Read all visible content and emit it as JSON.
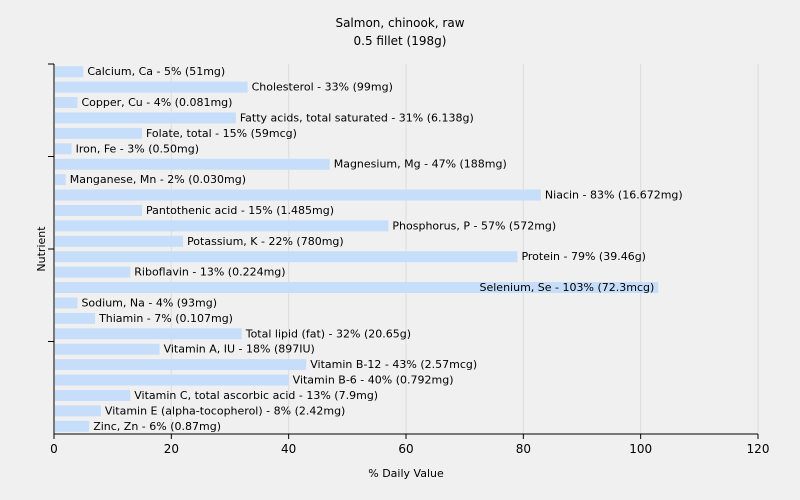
{
  "chart_data": {
    "type": "bar",
    "orientation": "horizontal",
    "title": "Salmon, chinook, raw",
    "subtitle": "0.5 fillet (198g)",
    "xlabel": "% Daily Value",
    "ylabel": "Nutrient",
    "xlim": [
      0,
      120
    ],
    "xticks": [
      0,
      20,
      40,
      60,
      80,
      100,
      120
    ],
    "grid": true,
    "legend": "none",
    "bar_color": "#c6def9",
    "categories": [
      "Calcium, Ca",
      "Cholesterol",
      "Copper, Cu",
      "Fatty acids, total saturated",
      "Folate, total",
      "Iron, Fe",
      "Magnesium, Mg",
      "Manganese, Mn",
      "Niacin",
      "Pantothenic acid",
      "Phosphorus, P",
      "Potassium, K",
      "Protein",
      "Riboflavin",
      "Selenium, Se",
      "Sodium, Na",
      "Thiamin",
      "Total lipid (fat)",
      "Vitamin A, IU",
      "Vitamin B-12",
      "Vitamin B-6",
      "Vitamin C, total ascorbic acid",
      "Vitamin E (alpha-tocopherol)",
      "Zinc, Zn"
    ],
    "values": [
      5,
      33,
      4,
      31,
      15,
      3,
      47,
      2,
      83,
      15,
      57,
      22,
      79,
      13,
      103,
      4,
      7,
      32,
      18,
      43,
      40,
      13,
      8,
      6
    ],
    "labels": [
      "Calcium, Ca - 5% (51mg)",
      "Cholesterol - 33% (99mg)",
      "Copper, Cu - 4% (0.081mg)",
      "Fatty acids, total saturated - 31% (6.138g)",
      "Folate, total - 15% (59mcg)",
      "Iron, Fe - 3% (0.50mg)",
      "Magnesium, Mg - 47% (188mg)",
      "Manganese, Mn - 2% (0.030mg)",
      "Niacin - 83% (16.672mg)",
      "Pantothenic acid - 15% (1.485mg)",
      "Phosphorus, P - 57% (572mg)",
      "Potassium, K - 22% (780mg)",
      "Protein - 79% (39.46g)",
      "Riboflavin - 13% (0.224mg)",
      "Selenium, Se - 103% (72.3mcg)",
      "Sodium, Na - 4% (93mg)",
      "Thiamin - 7% (0.107mg)",
      "Total lipid (fat) - 32% (20.65g)",
      "Vitamin A, IU - 18% (897IU)",
      "Vitamin B-12 - 43% (2.57mcg)",
      "Vitamin B-6 - 40% (0.792mg)",
      "Vitamin C, total ascorbic acid - 13% (7.9mg)",
      "Vitamin E (alpha-tocopherol) - 8% (2.42mg)",
      "Zinc, Zn - 6% (0.87mg)"
    ]
  }
}
